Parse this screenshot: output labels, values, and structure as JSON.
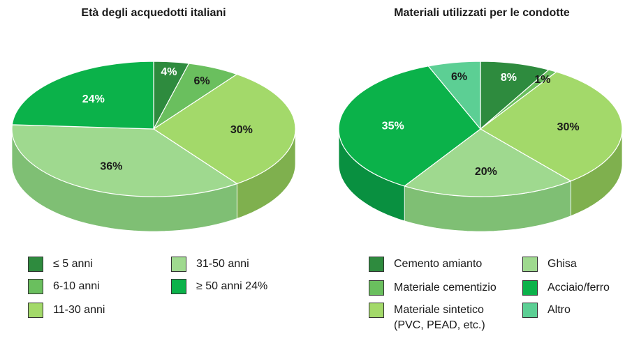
{
  "chart_data": [
    {
      "type": "pie",
      "title": "Età degli acquedotti italiani",
      "categories": [
        "≤ 5 anni",
        "6-10 anni",
        "11-30 anni",
        "31-50 anni",
        "≥ 50 anni 24%"
      ],
      "values": [
        4,
        6,
        30,
        36,
        24
      ],
      "value_labels": [
        "4%",
        "6%",
        "30%",
        "36%",
        "24%"
      ],
      "colors": [
        "#2e8b3e",
        "#6abf5e",
        "#a3d96a",
        "#9fd98f",
        "#0bb24a"
      ],
      "side_colors": [
        "#237030",
        "#55a04a",
        "#7fb04e",
        "#7fbf74",
        "#099040"
      ],
      "label_colors": [
        "#ffffff",
        "#1a1a1a",
        "#1a1a1a",
        "#1a1a1a",
        "#ffffff"
      ],
      "legend_placement": "bottom"
    },
    {
      "type": "pie",
      "title": "Materiali utilizzati per le condotte",
      "categories": [
        "Cemento amianto",
        "Materiale cementizio",
        "Materiale sintetico\n(PVC, PEAD, etc.)",
        "Ghisa",
        "Acciaio/ferro",
        "Altro"
      ],
      "values": [
        8,
        1,
        30,
        20,
        35,
        6
      ],
      "value_labels": [
        "8%",
        "1%",
        "30%",
        "20%",
        "35%",
        "6%"
      ],
      "colors": [
        "#2e8b3e",
        "#6abf5e",
        "#a3d96a",
        "#9fd98f",
        "#0bb24a",
        "#5ccf94"
      ],
      "side_colors": [
        "#237030",
        "#55a04a",
        "#7fb04e",
        "#7fbf74",
        "#099040",
        "#45a874"
      ],
      "label_colors": [
        "#ffffff",
        "#1a1a1a",
        "#1a1a1a",
        "#1a1a1a",
        "#ffffff",
        "#1a1a1a"
      ],
      "legend_placement": "bottom"
    }
  ]
}
